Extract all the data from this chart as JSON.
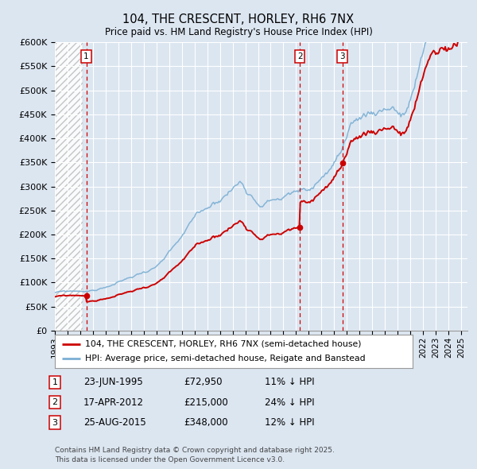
{
  "title": "104, THE CRESCENT, HORLEY, RH6 7NX",
  "subtitle": "Price paid vs. HM Land Registry's House Price Index (HPI)",
  "legend_line1": "104, THE CRESCENT, HORLEY, RH6 7NX (semi-detached house)",
  "legend_line2": "HPI: Average price, semi-detached house, Reigate and Banstead",
  "footer": "Contains HM Land Registry data © Crown copyright and database right 2025.\nThis data is licensed under the Open Government Licence v3.0.",
  "sales": [
    {
      "num": 1,
      "date": "23-JUN-1995",
      "date_dec": 1995.478,
      "price": 72950,
      "pct": "11% ↓ HPI"
    },
    {
      "num": 2,
      "date": "17-APR-2012",
      "date_dec": 2012.293,
      "price": 215000,
      "pct": "24% ↓ HPI"
    },
    {
      "num": 3,
      "date": "25-AUG-2015",
      "date_dec": 2015.648,
      "price": 348000,
      "pct": "12% ↓ HPI"
    }
  ],
  "ylim": [
    0,
    600000
  ],
  "yticks": [
    0,
    50000,
    100000,
    150000,
    200000,
    250000,
    300000,
    350000,
    400000,
    450000,
    500000,
    550000,
    600000
  ],
  "xlim_start": 1993.0,
  "xlim_end": 2025.5,
  "background_color": "#dce6f1",
  "plot_bg_color": "#dce6f1",
  "grid_color": "#ffffff",
  "red_line_color": "#cc0000",
  "blue_line_color": "#7bafd4",
  "sale_marker_color": "#cc0000",
  "vline_color": "#cc0000",
  "box_edge_color": "#cc0000",
  "box_fill_color": "#ffffff"
}
